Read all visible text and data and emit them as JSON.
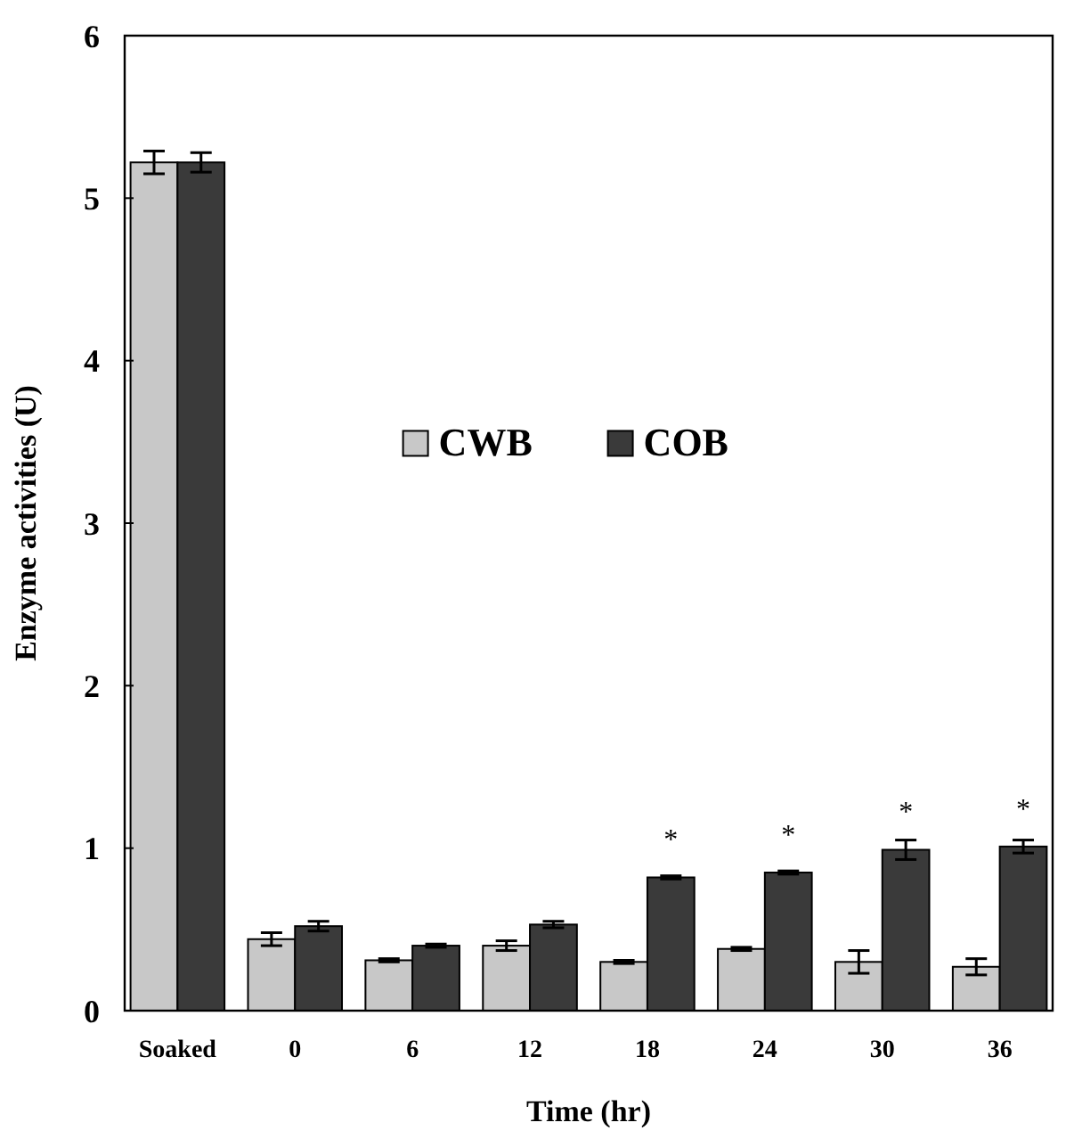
{
  "chart_data": {
    "type": "bar",
    "xlabel": "Time (hr)",
    "ylabel": "Enzyme activities (U)",
    "categories": [
      "Soaked",
      "0",
      "6",
      "12",
      "18",
      "24",
      "30",
      "36"
    ],
    "series": [
      {
        "name": "CWB",
        "color": "#c8c8c8",
        "values": [
          5.22,
          0.44,
          0.31,
          0.4,
          0.3,
          0.38,
          0.3,
          0.27
        ],
        "errors": [
          0.07,
          0.04,
          0.01,
          0.03,
          0.01,
          0.01,
          0.07,
          0.05
        ]
      },
      {
        "name": "COB",
        "color": "#3a3a3a",
        "values": [
          5.22,
          0.52,
          0.4,
          0.53,
          0.82,
          0.85,
          0.99,
          1.01
        ],
        "errors": [
          0.06,
          0.03,
          0.01,
          0.02,
          0.01,
          0.01,
          0.06,
          0.04
        ]
      }
    ],
    "ylim": [
      0,
      6
    ],
    "yticks": [
      0,
      1,
      2,
      3,
      4,
      5,
      6
    ],
    "grid": false,
    "legend": "center",
    "annotations": [
      {
        "text": "*",
        "x": "18",
        "y": 0.82
      },
      {
        "text": "*",
        "x": "24",
        "y": 0.85
      },
      {
        "text": "*",
        "x": "30",
        "y": 0.99
      },
      {
        "text": "*",
        "x": "36",
        "y": 1.01
      }
    ]
  }
}
